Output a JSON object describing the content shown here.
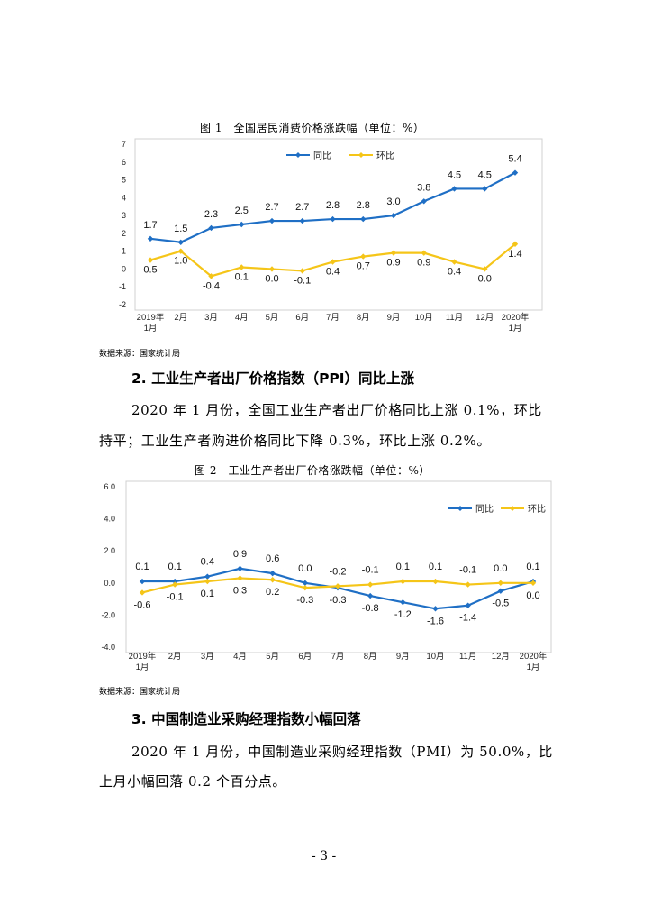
{
  "figure1": {
    "caption": "图 1　全国居民消费价格涨跌幅（单位：%）",
    "source": "数据来源：国家统计局",
    "chart_data": {
      "type": "line",
      "title": "全国居民消费价格涨跌幅（单位：%）",
      "categories": [
        "2019年 1月",
        "2月",
        "3月",
        "4月",
        "5月",
        "6月",
        "7月",
        "8月",
        "9月",
        "10月",
        "11月",
        "12月",
        "2020年 1月"
      ],
      "series": [
        {
          "name": "同比",
          "color": "#1f6fc5",
          "values": [
            1.7,
            1.5,
            2.3,
            2.5,
            2.7,
            2.7,
            2.8,
            2.8,
            3.0,
            3.8,
            4.5,
            4.5,
            5.4
          ]
        },
        {
          "name": "环比",
          "color": "#f5c518",
          "values": [
            0.5,
            1.0,
            -0.4,
            0.1,
            0.0,
            -0.1,
            0.4,
            0.7,
            0.9,
            0.9,
            0.4,
            0.0,
            1.4
          ]
        }
      ],
      "ylim": [
        -2,
        7
      ],
      "yticks": [
        "-2",
        "-1",
        "0",
        "1",
        "2",
        "3",
        "4",
        "5",
        "6",
        "7"
      ],
      "legend": "top-center"
    }
  },
  "section2": {
    "heading": "2.  工业生产者出厂价格指数（PPI）同比上涨",
    "lines": [
      "2020 年 1 月份，全国工业生产者出厂价格同比上涨 0.1%，环比",
      "持平；工业生产者购进价格同比下降 0.3%，环比上涨 0.2%。"
    ]
  },
  "figure2": {
    "caption": "图 2　工业生产者出厂价格涨跌幅（单位：%）",
    "source": "数据来源：国家统计局",
    "chart_data": {
      "type": "line",
      "title": "工业生产者出厂价格涨跌幅（单位：%）",
      "categories": [
        "2019年 1月",
        "2月",
        "3月",
        "4月",
        "5月",
        "6月",
        "7月",
        "8月",
        "9月",
        "10月",
        "11月",
        "12月",
        "2020年 1月"
      ],
      "series": [
        {
          "name": "同比",
          "color": "#1f6fc5",
          "values": [
            0.1,
            0.1,
            0.4,
            0.9,
            0.6,
            0.0,
            -0.3,
            -0.8,
            -1.2,
            -1.6,
            -1.4,
            -0.5,
            0.1
          ]
        },
        {
          "name": "环比",
          "color": "#f5c518",
          "values": [
            -0.6,
            -0.1,
            0.1,
            0.3,
            0.2,
            -0.3,
            -0.2,
            -0.1,
            0.1,
            0.1,
            -0.1,
            0.0,
            0.0
          ]
        }
      ],
      "ylim": [
        -4,
        6
      ],
      "yticks": [
        "-4.0",
        "-2.0",
        "0.0",
        "2.0",
        "4.0",
        "6.0"
      ],
      "legend": "top-right"
    }
  },
  "section3": {
    "heading": "3.  中国制造业采购经理指数小幅回落",
    "lines": [
      "2020 年 1 月份，中国制造业采购经理指数（PMI）为 50.0%，比",
      "上月小幅回落 0.2 个百分点。"
    ]
  },
  "page_number": "- 3 -"
}
